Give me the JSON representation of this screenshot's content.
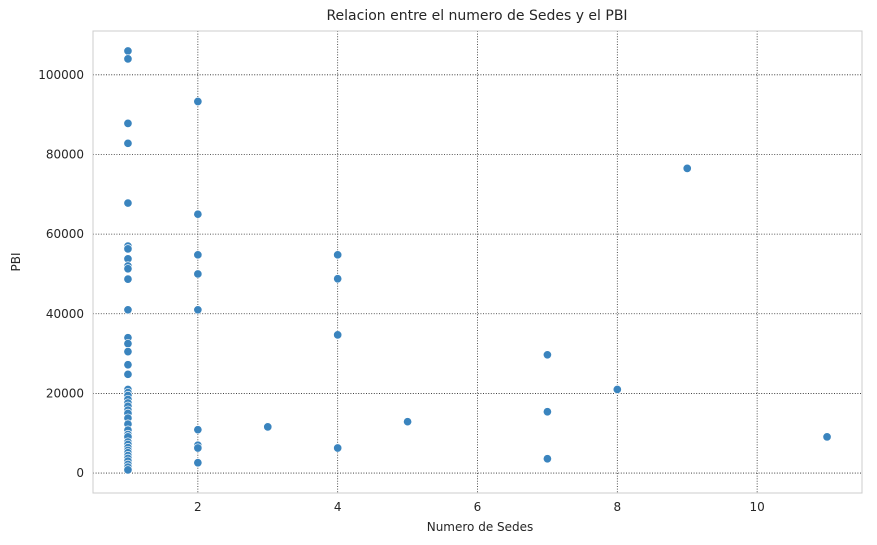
{
  "chart_data": {
    "type": "scatter",
    "title": "Relacion entre el numero de Sedes y el PBI",
    "xlabel": "Numero de Sedes",
    "ylabel": "PBI",
    "xlim": [
      0.5,
      11.5
    ],
    "ylim": [
      -5000,
      111000
    ],
    "xticks": [
      2,
      4,
      6,
      8,
      10
    ],
    "yticks": [
      0,
      20000,
      40000,
      60000,
      80000,
      100000
    ],
    "grid": true,
    "marker_color": "#3a84be",
    "points": [
      {
        "x": 1,
        "y": 106000
      },
      {
        "x": 1,
        "y": 104000
      },
      {
        "x": 1,
        "y": 87800
      },
      {
        "x": 1,
        "y": 82800
      },
      {
        "x": 1,
        "y": 67800
      },
      {
        "x": 1,
        "y": 57000
      },
      {
        "x": 1,
        "y": 56300
      },
      {
        "x": 1,
        "y": 53800
      },
      {
        "x": 1,
        "y": 52000
      },
      {
        "x": 1,
        "y": 51300
      },
      {
        "x": 1,
        "y": 48700
      },
      {
        "x": 1,
        "y": 41000
      },
      {
        "x": 1,
        "y": 34000
      },
      {
        "x": 1,
        "y": 32500
      },
      {
        "x": 1,
        "y": 30500
      },
      {
        "x": 1,
        "y": 27200
      },
      {
        "x": 1,
        "y": 24800
      },
      {
        "x": 1,
        "y": 21000
      },
      {
        "x": 1,
        "y": 20200
      },
      {
        "x": 1,
        "y": 19500
      },
      {
        "x": 1,
        "y": 18500
      },
      {
        "x": 1,
        "y": 17600
      },
      {
        "x": 1,
        "y": 16800
      },
      {
        "x": 1,
        "y": 15800
      },
      {
        "x": 1,
        "y": 15000
      },
      {
        "x": 1,
        "y": 13800
      },
      {
        "x": 1,
        "y": 12300
      },
      {
        "x": 1,
        "y": 10800
      },
      {
        "x": 1,
        "y": 9700
      },
      {
        "x": 1,
        "y": 9100
      },
      {
        "x": 1,
        "y": 7800
      },
      {
        "x": 1,
        "y": 7200
      },
      {
        "x": 1,
        "y": 6400
      },
      {
        "x": 1,
        "y": 5700
      },
      {
        "x": 1,
        "y": 5100
      },
      {
        "x": 1,
        "y": 4400
      },
      {
        "x": 1,
        "y": 3700
      },
      {
        "x": 1,
        "y": 3000
      },
      {
        "x": 1,
        "y": 2200
      },
      {
        "x": 1,
        "y": 1500
      },
      {
        "x": 1,
        "y": 800
      },
      {
        "x": 2,
        "y": 93300
      },
      {
        "x": 2,
        "y": 65000
      },
      {
        "x": 2,
        "y": 54800
      },
      {
        "x": 2,
        "y": 50000
      },
      {
        "x": 2,
        "y": 41000
      },
      {
        "x": 2,
        "y": 10900
      },
      {
        "x": 2,
        "y": 7000
      },
      {
        "x": 2,
        "y": 6300
      },
      {
        "x": 2,
        "y": 2600
      },
      {
        "x": 3,
        "y": 11600
      },
      {
        "x": 4,
        "y": 54800
      },
      {
        "x": 4,
        "y": 48800
      },
      {
        "x": 4,
        "y": 34700
      },
      {
        "x": 4,
        "y": 6300
      },
      {
        "x": 5,
        "y": 12900
      },
      {
        "x": 7,
        "y": 29700
      },
      {
        "x": 7,
        "y": 15400
      },
      {
        "x": 7,
        "y": 3600
      },
      {
        "x": 8,
        "y": 21000
      },
      {
        "x": 9,
        "y": 76500
      },
      {
        "x": 11,
        "y": 9100
      }
    ]
  }
}
